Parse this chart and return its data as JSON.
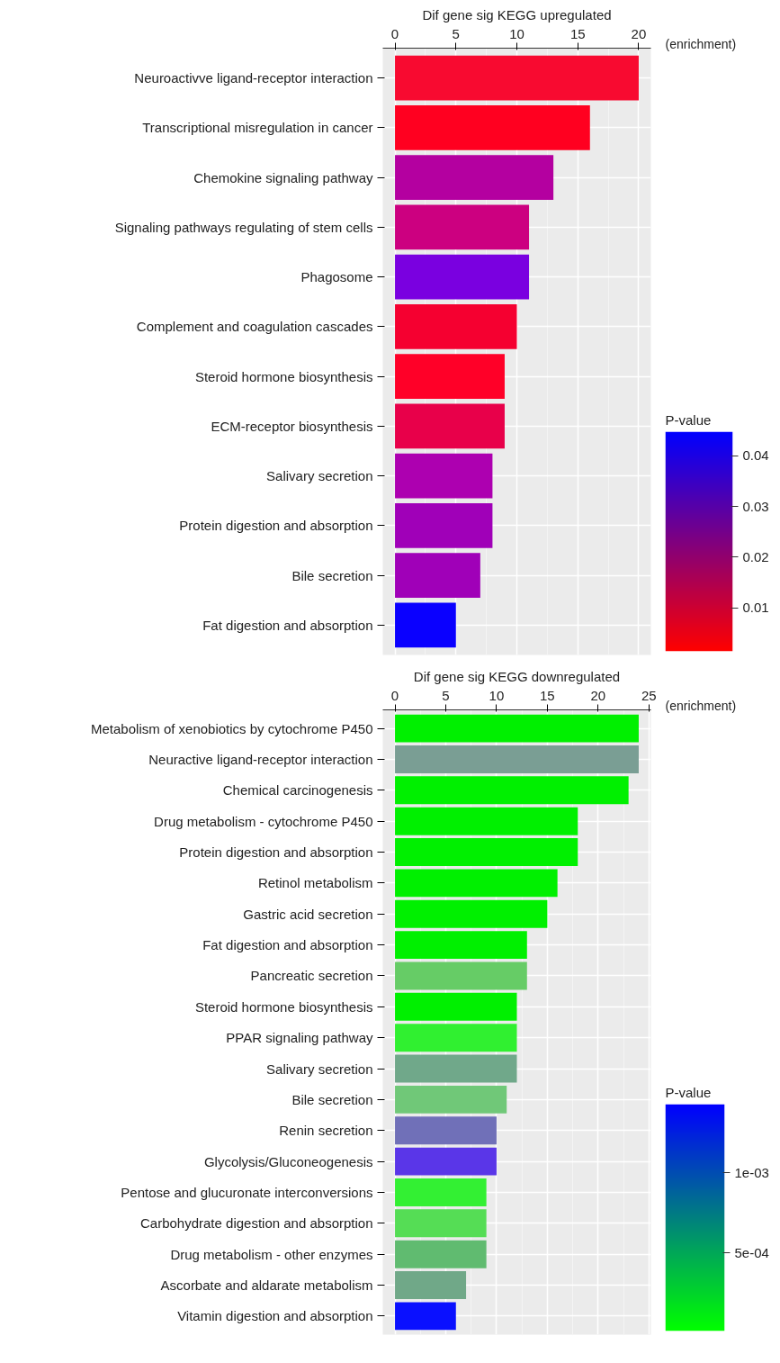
{
  "chart_data": [
    {
      "type": "bar",
      "orientation": "horizontal",
      "title": "Dif gene sig KEGG upregulated",
      "xlabel": "(enrichment)",
      "categories": [
        "Neuroactivve ligand-receptor interaction",
        "Transcriptional misregulation in cancer",
        "Chemokine signaling pathway",
        "Signaling pathways regulating of stem cells",
        "Phagosome",
        "Complement and coagulation cascades",
        "Steroid hormone biosynthesis",
        "ECM-receptor biosynthesis",
        "Salivary secretion",
        "Protein digestion and absorption",
        "Bile secretion",
        "Fat digestion and absorption"
      ],
      "values": [
        20,
        16,
        13,
        11,
        11,
        10,
        9,
        9,
        8,
        8,
        7,
        5
      ],
      "colors": [
        "#f80a30",
        "#ff0020",
        "#b400a0",
        "#cc0080",
        "#7a00e0",
        "#f50030",
        "#ff0028",
        "#e8004a",
        "#ad00b0",
        "#a000b8",
        "#a000b8",
        "#0a00ff"
      ],
      "xlim": [
        -1,
        21
      ],
      "xticks": [
        0,
        5,
        10,
        15,
        20
      ],
      "grid": true,
      "clabel": "P-value",
      "clim": [
        0.0014,
        0.0448
      ],
      "cticks": [
        0.01,
        0.02,
        0.03,
        0.04
      ]
    },
    {
      "type": "bar",
      "orientation": "horizontal",
      "title": "Dif gene sig KEGG downregulated",
      "xlabel": "(enrichment)",
      "categories": [
        "Metabolism of xenobiotics by cytochrome P450",
        "Neuractive ligand-receptor interaction",
        "Chemical carcinogenesis",
        "Drug metabolism - cytochrome P450",
        "Protein digestion and absorption",
        "Retinol metabolism",
        "Gastric acid secretion",
        "Fat digestion and absorption",
        "Pancreatic secretion",
        "Steroid hormone biosynthesis",
        "PPAR signaling pathway",
        "Salivary secretion",
        "Bile secretion",
        "Renin secretion",
        "Glycolysis/Gluconeogenesis",
        "Pentose and glucuronate interconversions",
        "Carbohydrate digestion and absorption",
        "Drug metabolism - other enzymes",
        "Ascorbate and aldarate metabolism",
        "Vitamin digestion and absorption"
      ],
      "values": [
        24,
        24,
        23,
        18,
        18,
        16,
        15,
        13,
        13,
        12,
        12,
        12,
        11,
        10,
        10,
        9,
        9,
        9,
        7,
        6
      ],
      "colors": [
        "#00f000",
        "#7a9e94",
        "#00f000",
        "#00f000",
        "#00f000",
        "#00f000",
        "#00f000",
        "#00f000",
        "#66cc66",
        "#00f000",
        "#30f030",
        "#70a88a",
        "#70c878",
        "#7070b8",
        "#5a36e8",
        "#33f033",
        "#55dd55",
        "#60bb70",
        "#70a888",
        "#0a10ff"
      ],
      "xlim": [
        -1.2,
        25.2
      ],
      "xticks": [
        0,
        5,
        10,
        15,
        20,
        25
      ],
      "grid": true,
      "clabel": "P-value",
      "clim": [
        1e-05,
        0.00143
      ],
      "cticks": [
        {
          "value": 0.001,
          "label": "1e-03"
        },
        {
          "value": 0.0005,
          "label": "5e-04"
        }
      ]
    }
  ]
}
